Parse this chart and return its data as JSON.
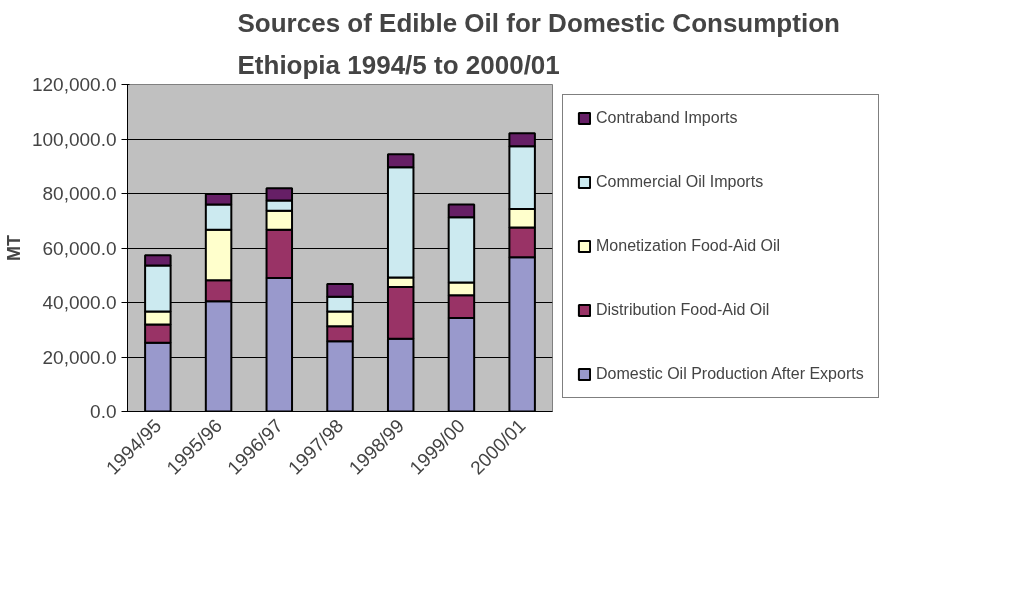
{
  "chart_data": {
    "type": "bar",
    "stacked": true,
    "title": "Sources of Edible Oil for Domestic Consumption",
    "subtitle": "Ethiopia 1994/5 to 2000/01",
    "ylabel": "MT",
    "categories": [
      "1994/95",
      "1995/96",
      "1996/97",
      "1997/98",
      "1998/99",
      "1999/00",
      "2000/01"
    ],
    "series": [
      {
        "name": "Domestic Oil Production After Exports",
        "color": "#9999cc",
        "values": [
          25200,
          40500,
          49000,
          25800,
          26700,
          34300,
          56600
        ]
      },
      {
        "name": "Distribution Food-Aid Oil",
        "color": "#993366",
        "values": [
          6700,
          7700,
          17700,
          5500,
          19000,
          8400,
          10900
        ]
      },
      {
        "name": "Monetization Food-Aid Oil",
        "color": "#ffffcc",
        "values": [
          4800,
          18500,
          7000,
          5400,
          3500,
          4600,
          6800
        ]
      },
      {
        "name": "Commercial Oil Imports",
        "color": "#cceaf0",
        "values": [
          16900,
          9300,
          3700,
          5400,
          40400,
          24000,
          23000
        ]
      },
      {
        "name": "Contraband Imports",
        "color": "#661f66",
        "values": [
          3700,
          3800,
          4500,
          4700,
          4800,
          4700,
          4800
        ]
      }
    ],
    "ylim": [
      0,
      120000
    ],
    "yticks": [
      {
        "value": 0,
        "label": "0.0"
      },
      {
        "value": 20000,
        "label": "20,000.0"
      },
      {
        "value": 40000,
        "label": "40,000.0"
      },
      {
        "value": 60000,
        "label": "60,000.0"
      },
      {
        "value": 80000,
        "label": "80,000.0"
      },
      {
        "value": 100000,
        "label": "100,000.0"
      },
      {
        "value": 120000,
        "label": "120,000.0"
      }
    ],
    "grid": "y",
    "legend": "right"
  }
}
